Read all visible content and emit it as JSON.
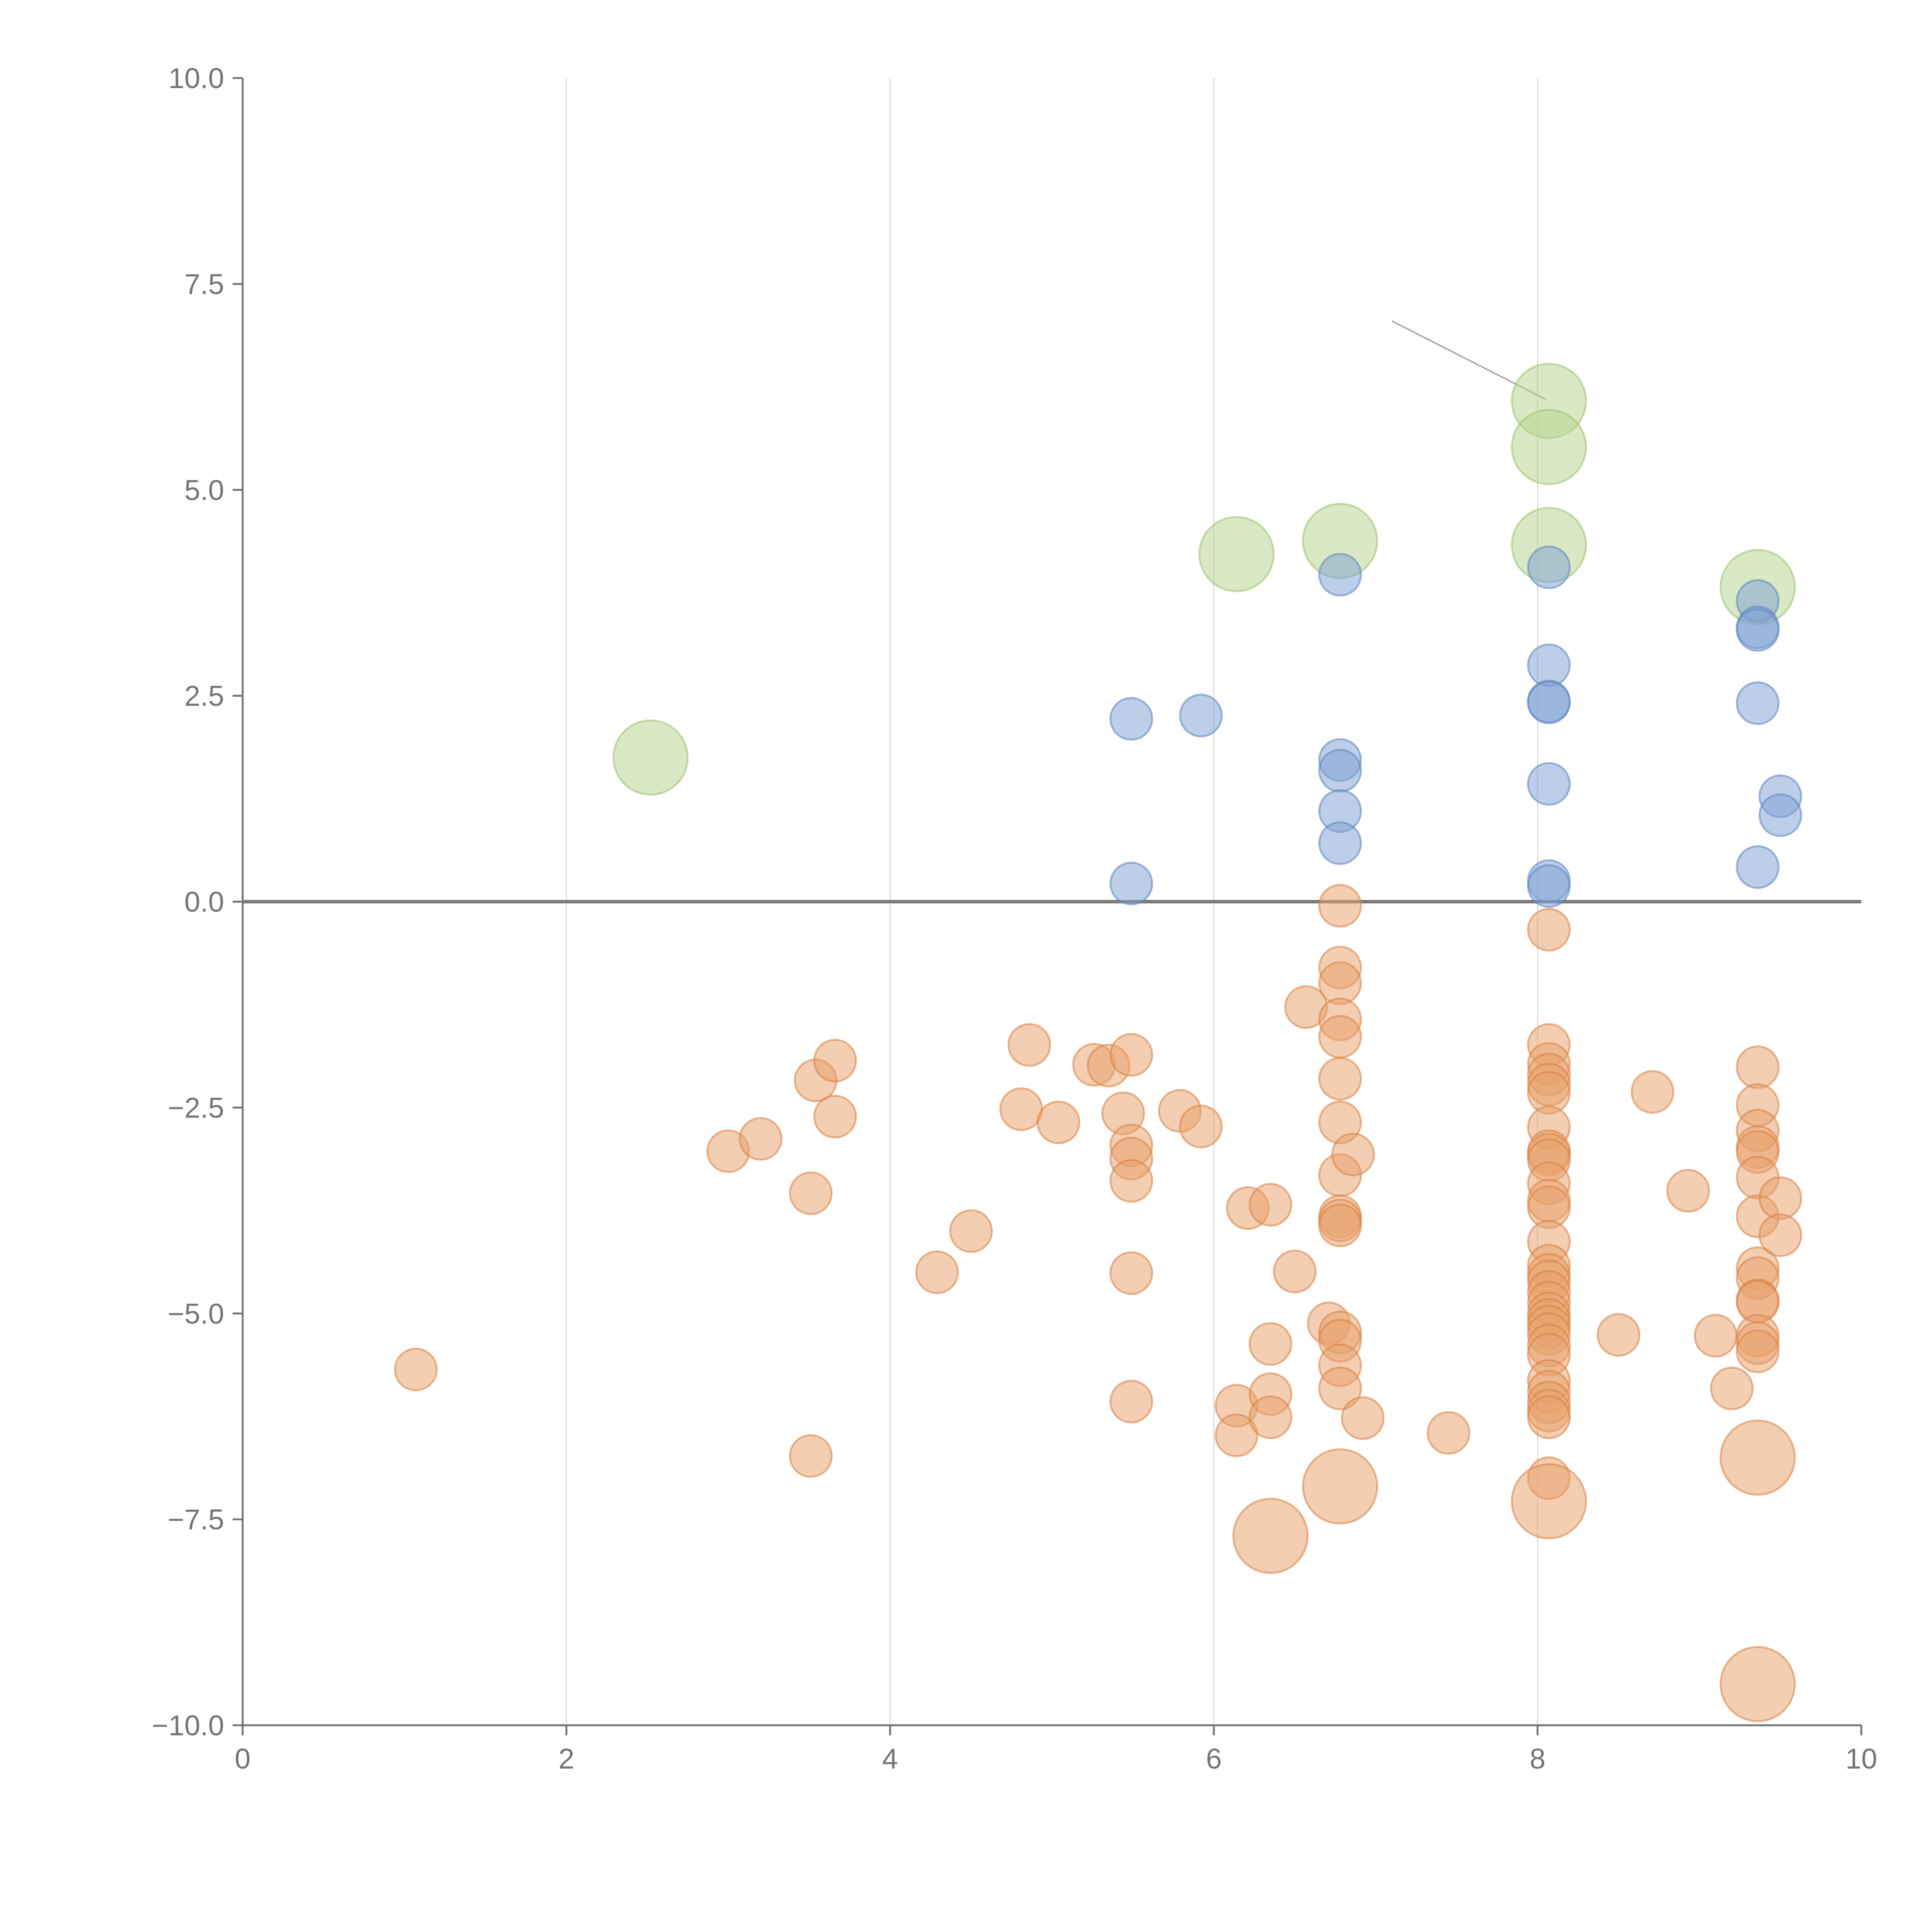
{
  "chart_data": {
    "type": "scatter",
    "title": "",
    "xlabel": "",
    "ylabel": "",
    "xlim": [
      0,
      10
    ],
    "ylim": [
      -10,
      10
    ],
    "grid": "vertical",
    "zero_line": true,
    "x_ticks": [
      0,
      2,
      4,
      6,
      8,
      10
    ],
    "x_tick_labels": [
      "0",
      "2",
      "4",
      "6",
      "8",
      "10"
    ],
    "y_ticks": [
      10,
      7.5,
      5,
      2.5,
      0,
      -2.5,
      -5,
      -7.5,
      -10
    ],
    "y_tick_labels": [
      "10.0",
      "7.5",
      "5.0",
      "2.5",
      "0.0",
      "−2.5",
      "−5.0",
      "−7.5",
      "−10.0"
    ],
    "colors": {
      "orange": "#e8a16b",
      "orange_stroke": "#d9803f",
      "blue": "#7fa2d2",
      "blue_stroke": "#5b84c0",
      "green": "#b7d48f",
      "green_stroke": "#9cc16b",
      "axis": "#757575",
      "grid": "#dcdcdc"
    },
    "series": [
      {
        "name": "green",
        "color": "green",
        "size": "large",
        "points": [
          [
            2.52,
            1.75
          ],
          [
            6.14,
            4.22
          ],
          [
            6.78,
            4.38
          ],
          [
            8.07,
            6.08
          ],
          [
            8.07,
            5.52
          ],
          [
            8.07,
            4.33
          ],
          [
            9.36,
            3.82
          ]
        ]
      },
      {
        "name": "blue",
        "color": "blue",
        "size": "small",
        "points": [
          [
            5.49,
            2.22
          ],
          [
            5.92,
            2.26
          ],
          [
            5.49,
            0.22
          ],
          [
            6.78,
            3.97
          ],
          [
            6.78,
            1.72
          ],
          [
            6.78,
            1.59
          ],
          [
            6.78,
            1.1
          ],
          [
            6.78,
            0.71
          ],
          [
            8.07,
            4.06
          ],
          [
            8.07,
            2.87
          ],
          [
            8.07,
            2.43
          ],
          [
            8.07,
            2.42
          ],
          [
            8.07,
            1.43
          ],
          [
            8.07,
            0.25
          ],
          [
            8.07,
            0.19
          ],
          [
            9.36,
            3.65
          ],
          [
            9.36,
            3.33
          ],
          [
            9.36,
            3.3
          ],
          [
            9.36,
            2.41
          ],
          [
            9.5,
            1.28
          ],
          [
            9.5,
            1.05
          ],
          [
            9.36,
            0.42
          ]
        ]
      },
      {
        "name": "orange",
        "color": "orange",
        "size": "small",
        "points": [
          [
            1.07,
            -5.68
          ],
          [
            3.0,
            -3.03
          ],
          [
            3.2,
            -2.88
          ],
          [
            3.51,
            -3.54
          ],
          [
            3.54,
            -2.17
          ],
          [
            3.66,
            -1.93
          ],
          [
            3.66,
            -2.61
          ],
          [
            3.51,
            -6.73
          ],
          [
            4.29,
            -4.5
          ],
          [
            4.5,
            -4.0
          ],
          [
            4.81,
            -2.52
          ],
          [
            4.86,
            -1.74
          ],
          [
            5.04,
            -2.68
          ],
          [
            5.26,
            -1.98
          ],
          [
            5.35,
            -1.99
          ],
          [
            5.44,
            -2.57
          ],
          [
            5.49,
            -1.86
          ],
          [
            5.49,
            -2.96
          ],
          [
            5.49,
            -3.12
          ],
          [
            5.49,
            -3.39
          ],
          [
            5.49,
            -4.51
          ],
          [
            5.49,
            -6.07
          ],
          [
            5.79,
            -2.54
          ],
          [
            5.92,
            -2.73
          ],
          [
            6.14,
            -6.12
          ],
          [
            6.14,
            -6.48
          ],
          [
            6.21,
            -3.72
          ],
          [
            6.35,
            -3.68
          ],
          [
            6.35,
            -5.37
          ],
          [
            6.35,
            -5.98
          ],
          [
            6.35,
            -6.26
          ],
          [
            6.5,
            -4.49
          ],
          [
            6.57,
            -1.28
          ],
          [
            6.71,
            -5.12
          ],
          [
            6.78,
            -0.05
          ],
          [
            6.78,
            -0.8
          ],
          [
            6.78,
            -0.99
          ],
          [
            6.78,
            -1.43
          ],
          [
            6.78,
            -1.64
          ],
          [
            6.78,
            -2.15
          ],
          [
            6.78,
            -2.68
          ],
          [
            6.78,
            -3.32
          ],
          [
            6.78,
            -3.82
          ],
          [
            6.78,
            -3.87
          ],
          [
            6.78,
            -3.93
          ],
          [
            6.78,
            -5.23
          ],
          [
            6.78,
            -5.33
          ],
          [
            6.78,
            -5.63
          ],
          [
            6.78,
            -5.91
          ],
          [
            6.86,
            -3.07
          ],
          [
            6.92,
            -6.27
          ],
          [
            7.45,
            -6.45
          ],
          [
            8.07,
            -0.34
          ],
          [
            8.07,
            -1.74
          ],
          [
            8.07,
            -1.97
          ],
          [
            8.07,
            -2.1
          ],
          [
            8.07,
            -2.22
          ],
          [
            8.07,
            -2.32
          ],
          [
            8.07,
            -2.74
          ],
          [
            8.07,
            -3.03
          ],
          [
            8.07,
            -3.07
          ],
          [
            8.07,
            -3.14
          ],
          [
            8.07,
            -3.42
          ],
          [
            8.07,
            -3.63
          ],
          [
            8.07,
            -3.71
          ],
          [
            8.07,
            -4.13
          ],
          [
            8.07,
            -4.42
          ],
          [
            8.07,
            -4.53
          ],
          [
            8.07,
            -4.61
          ],
          [
            8.07,
            -4.74
          ],
          [
            8.07,
            -4.87
          ],
          [
            8.07,
            -5.0
          ],
          [
            8.07,
            -5.08
          ],
          [
            8.07,
            -5.16
          ],
          [
            8.07,
            -5.25
          ],
          [
            8.07,
            -5.39
          ],
          [
            8.07,
            -5.5
          ],
          [
            8.07,
            -5.82
          ],
          [
            8.07,
            -5.95
          ],
          [
            8.07,
            -6.08
          ],
          [
            8.07,
            -6.18
          ],
          [
            8.07,
            -6.26
          ],
          [
            8.07,
            -7.0
          ],
          [
            8.5,
            -5.26
          ],
          [
            8.71,
            -2.31
          ],
          [
            8.93,
            -3.51
          ],
          [
            9.1,
            -5.27
          ],
          [
            9.2,
            -5.91
          ],
          [
            9.36,
            -2.01
          ],
          [
            9.36,
            -2.47
          ],
          [
            9.36,
            -2.78
          ],
          [
            9.36,
            -2.98
          ],
          [
            9.36,
            -3.04
          ],
          [
            9.36,
            -3.35
          ],
          [
            9.36,
            -3.82
          ],
          [
            9.36,
            -4.45
          ],
          [
            9.36,
            -4.57
          ],
          [
            9.36,
            -4.84
          ],
          [
            9.36,
            -4.86
          ],
          [
            9.36,
            -5.27
          ],
          [
            9.36,
            -5.36
          ],
          [
            9.36,
            -5.46
          ],
          [
            9.5,
            -3.6
          ],
          [
            9.5,
            -4.05
          ]
        ]
      },
      {
        "name": "orange-large",
        "color": "orange",
        "size": "large",
        "points": [
          [
            6.35,
            -7.7
          ],
          [
            6.78,
            -7.1
          ],
          [
            8.07,
            -7.28
          ],
          [
            9.36,
            -6.75
          ],
          [
            9.36,
            -9.5
          ]
        ]
      }
    ],
    "annotation_lines": [
      [
        [
          7.1,
          7.05
        ],
        [
          8.05,
          6.1
        ]
      ]
    ]
  }
}
